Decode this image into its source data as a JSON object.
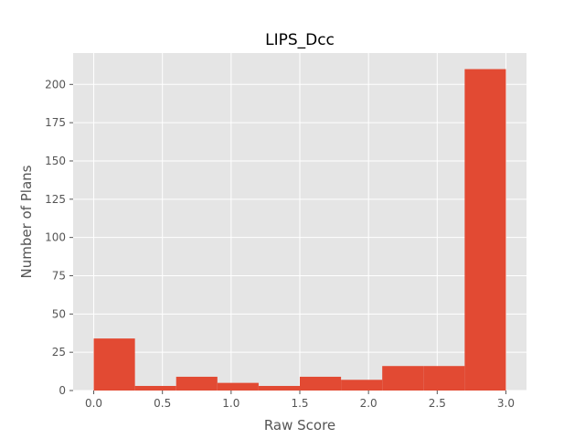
{
  "chart_data": {
    "type": "bar",
    "title": "LIPS_Dcc",
    "xlabel": "Raw Score",
    "ylabel": "Number of Plans",
    "xlim": [
      -0.15,
      3.15
    ],
    "ylim": [
      0,
      220.5
    ],
    "grid": true,
    "bins": [
      {
        "x0": 0.0,
        "x1": 0.3,
        "count": 34
      },
      {
        "x0": 0.3,
        "x1": 0.6,
        "count": 3
      },
      {
        "x0": 0.6,
        "x1": 0.9,
        "count": 9
      },
      {
        "x0": 0.9,
        "x1": 1.2,
        "count": 5
      },
      {
        "x0": 1.2,
        "x1": 1.5,
        "count": 3
      },
      {
        "x0": 1.5,
        "x1": 1.8,
        "count": 9
      },
      {
        "x0": 1.8,
        "x1": 2.1,
        "count": 7
      },
      {
        "x0": 2.1,
        "x1": 2.4,
        "count": 16
      },
      {
        "x0": 2.4,
        "x1": 2.7,
        "count": 16
      },
      {
        "x0": 2.7,
        "x1": 3.0,
        "count": 210
      }
    ],
    "xticks": [
      {
        "value": 0.0,
        "label": "0.0"
      },
      {
        "value": 0.5,
        "label": "0.5"
      },
      {
        "value": 1.0,
        "label": "1.0"
      },
      {
        "value": 1.5,
        "label": "1.5"
      },
      {
        "value": 2.0,
        "label": "2.0"
      },
      {
        "value": 2.5,
        "label": "2.5"
      },
      {
        "value": 3.0,
        "label": "3.0"
      }
    ],
    "yticks": [
      {
        "value": 0,
        "label": "0"
      },
      {
        "value": 25,
        "label": "25"
      },
      {
        "value": 50,
        "label": "50"
      },
      {
        "value": 75,
        "label": "75"
      },
      {
        "value": 100,
        "label": "100"
      },
      {
        "value": 125,
        "label": "125"
      },
      {
        "value": 150,
        "label": "150"
      },
      {
        "value": 175,
        "label": "175"
      },
      {
        "value": 200,
        "label": "200"
      }
    ],
    "colors": {
      "bar": "#E24A33",
      "plot_background": "#E5E5E5",
      "grid": "#FFFFFF",
      "tick": "#555555"
    }
  }
}
